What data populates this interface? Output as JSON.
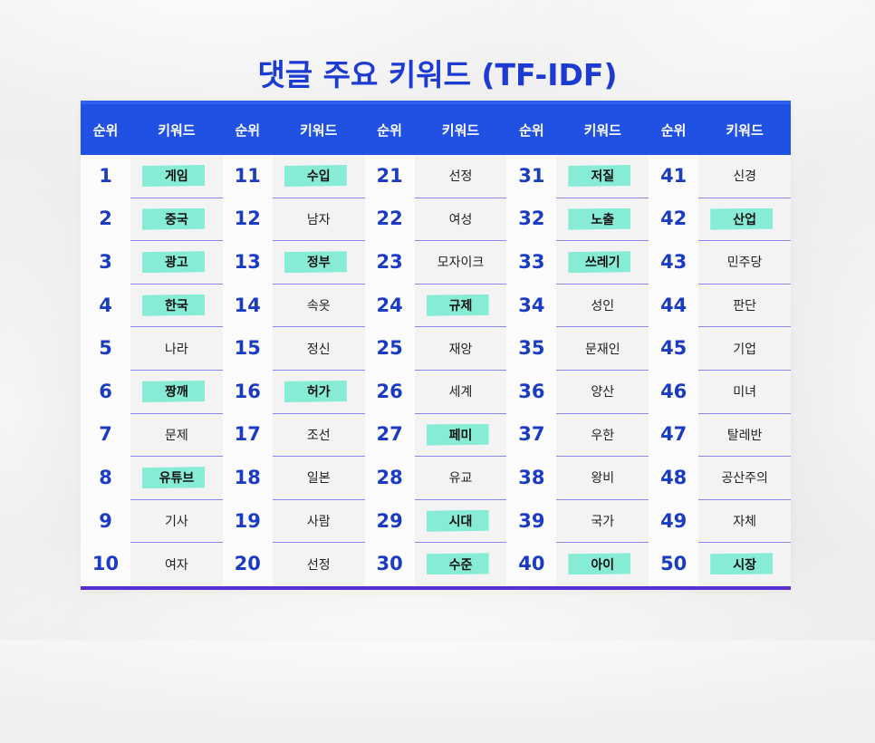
{
  "title": "댓글 주요 키워드 (TF-IDF)",
  "colors": {
    "title": "#1b3bd2",
    "header_bg": "#2151e2",
    "rank_text": "#1b3cc2",
    "highlight": "#86ecd6",
    "row_divider": "#8a88ea",
    "bottom_bar": "#5a2fd2"
  },
  "header": {
    "rank_label": "순위",
    "keyword_label": "키워드"
  },
  "groups": [
    {
      "rows": [
        {
          "rank": "1",
          "keyword": "게임",
          "highlighted": true
        },
        {
          "rank": "2",
          "keyword": "중국",
          "highlighted": true
        },
        {
          "rank": "3",
          "keyword": "광고",
          "highlighted": true
        },
        {
          "rank": "4",
          "keyword": "한국",
          "highlighted": true
        },
        {
          "rank": "5",
          "keyword": "나라",
          "highlighted": false
        },
        {
          "rank": "6",
          "keyword": "짱깨",
          "highlighted": true
        },
        {
          "rank": "7",
          "keyword": "문제",
          "highlighted": false
        },
        {
          "rank": "8",
          "keyword": "유튜브",
          "highlighted": true
        },
        {
          "rank": "9",
          "keyword": "기사",
          "highlighted": false
        },
        {
          "rank": "10",
          "keyword": "여자",
          "highlighted": false
        }
      ]
    },
    {
      "rows": [
        {
          "rank": "11",
          "keyword": "수입",
          "highlighted": true
        },
        {
          "rank": "12",
          "keyword": "남자",
          "highlighted": false
        },
        {
          "rank": "13",
          "keyword": "정부",
          "highlighted": true
        },
        {
          "rank": "14",
          "keyword": "속옷",
          "highlighted": false
        },
        {
          "rank": "15",
          "keyword": "정신",
          "highlighted": false
        },
        {
          "rank": "16",
          "keyword": "허가",
          "highlighted": true
        },
        {
          "rank": "17",
          "keyword": "조선",
          "highlighted": false
        },
        {
          "rank": "18",
          "keyword": "일본",
          "highlighted": false
        },
        {
          "rank": "19",
          "keyword": "사람",
          "highlighted": false
        },
        {
          "rank": "20",
          "keyword": "선정",
          "highlighted": false
        }
      ]
    },
    {
      "rows": [
        {
          "rank": "21",
          "keyword": "선정",
          "highlighted": false
        },
        {
          "rank": "22",
          "keyword": "여성",
          "highlighted": false
        },
        {
          "rank": "23",
          "keyword": "모자이크",
          "highlighted": false
        },
        {
          "rank": "24",
          "keyword": "규제",
          "highlighted": true
        },
        {
          "rank": "25",
          "keyword": "재앙",
          "highlighted": false
        },
        {
          "rank": "26",
          "keyword": "세계",
          "highlighted": false
        },
        {
          "rank": "27",
          "keyword": "페미",
          "highlighted": true
        },
        {
          "rank": "28",
          "keyword": "유교",
          "highlighted": false
        },
        {
          "rank": "29",
          "keyword": "시대",
          "highlighted": true
        },
        {
          "rank": "30",
          "keyword": "수준",
          "highlighted": true
        }
      ]
    },
    {
      "rows": [
        {
          "rank": "31",
          "keyword": "저질",
          "highlighted": true
        },
        {
          "rank": "32",
          "keyword": "노출",
          "highlighted": true
        },
        {
          "rank": "33",
          "keyword": "쓰레기",
          "highlighted": true
        },
        {
          "rank": "34",
          "keyword": "성인",
          "highlighted": false
        },
        {
          "rank": "35",
          "keyword": "문재인",
          "highlighted": false
        },
        {
          "rank": "36",
          "keyword": "양산",
          "highlighted": false
        },
        {
          "rank": "37",
          "keyword": "우한",
          "highlighted": false
        },
        {
          "rank": "38",
          "keyword": "왕비",
          "highlighted": false
        },
        {
          "rank": "39",
          "keyword": "국가",
          "highlighted": false
        },
        {
          "rank": "40",
          "keyword": "아이",
          "highlighted": true
        }
      ]
    },
    {
      "rows": [
        {
          "rank": "41",
          "keyword": "신경",
          "highlighted": false
        },
        {
          "rank": "42",
          "keyword": "산업",
          "highlighted": true
        },
        {
          "rank": "43",
          "keyword": "민주당",
          "highlighted": false
        },
        {
          "rank": "44",
          "keyword": "판단",
          "highlighted": false
        },
        {
          "rank": "45",
          "keyword": "기업",
          "highlighted": false
        },
        {
          "rank": "46",
          "keyword": "미녀",
          "highlighted": false
        },
        {
          "rank": "47",
          "keyword": "탈레반",
          "highlighted": false
        },
        {
          "rank": "48",
          "keyword": "공산주의",
          "highlighted": false
        },
        {
          "rank": "49",
          "keyword": "자체",
          "highlighted": false
        },
        {
          "rank": "50",
          "keyword": "시장",
          "highlighted": true
        }
      ]
    }
  ]
}
